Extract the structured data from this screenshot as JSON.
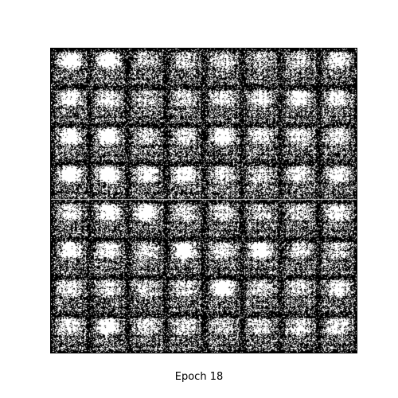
{
  "figure": {
    "caption": "Epoch 18"
  },
  "sample_grid": {
    "rows": 8,
    "columns": 8,
    "palette": {
      "background": "#000000",
      "foreground": "#ffffff",
      "page": "#ffffff"
    },
    "brightness": [
      [
        0.85,
        0.88,
        0.55,
        0.62,
        0.66,
        0.52,
        0.58,
        0.72
      ],
      [
        0.8,
        0.66,
        0.56,
        0.66,
        0.7,
        0.74,
        0.8,
        0.74
      ],
      [
        0.86,
        0.86,
        0.6,
        0.66,
        0.82,
        0.66,
        0.72,
        0.7
      ],
      [
        0.9,
        0.88,
        0.76,
        0.82,
        0.7,
        0.64,
        0.72,
        0.76
      ],
      [
        0.7,
        0.82,
        0.86,
        0.64,
        0.66,
        0.56,
        0.62,
        0.74
      ],
      [
        0.82,
        0.76,
        0.66,
        0.86,
        0.68,
        0.84,
        0.68,
        0.62
      ],
      [
        0.72,
        0.66,
        0.56,
        0.64,
        0.86,
        0.62,
        0.6,
        0.72
      ],
      [
        0.72,
        0.84,
        0.68,
        0.64,
        0.6,
        0.66,
        0.64,
        0.7
      ]
    ]
  }
}
